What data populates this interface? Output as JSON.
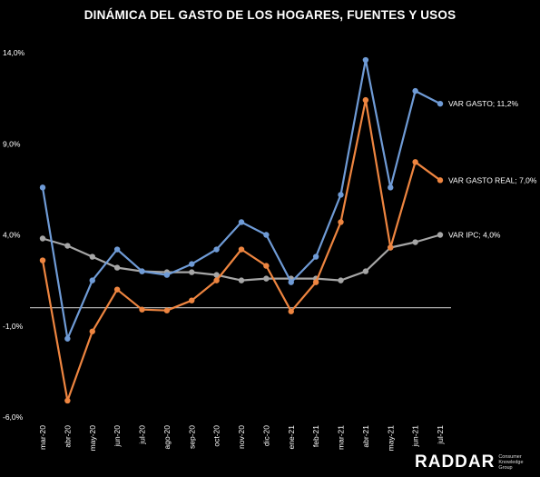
{
  "chart_data": {
    "type": "line",
    "title": "DINÁMICA DEL GASTO DE LOS HOGARES, FUENTES Y USOS",
    "categories": [
      "mar-20",
      "abr-20",
      "may-20",
      "jun-20",
      "jul-20",
      "ago-20",
      "sep-20",
      "oct-20",
      "nov-20",
      "dic-20",
      "ene-21",
      "feb-21",
      "mar-21",
      "abr-21",
      "may-21",
      "jun-21",
      "jul-21"
    ],
    "ylim": [
      -6.0,
      14.0
    ],
    "yticks": [
      14.0,
      9.0,
      4.0,
      -1.0,
      -6.0
    ],
    "ytick_labels": [
      "14,0%",
      "9,0%",
      "4,0%",
      "-1,0%",
      "-6,0%"
    ],
    "baseline": 0,
    "grid": false,
    "series": [
      {
        "name": "VAR GASTO",
        "end_label": "VAR GASTO; 11,2%",
        "color": "#6f9bd6",
        "values": [
          6.6,
          -1.7,
          1.5,
          3.2,
          2.0,
          1.8,
          2.4,
          3.2,
          4.7,
          4.0,
          1.4,
          2.8,
          6.2,
          13.6,
          6.6,
          11.9,
          11.2
        ]
      },
      {
        "name": "VAR GASTO REAL",
        "end_label": "VAR GASTO REAL; 7,0%",
        "color": "#ee8540",
        "values": [
          2.6,
          -5.1,
          -1.3,
          1.0,
          -0.1,
          -0.15,
          0.4,
          1.5,
          3.2,
          2.3,
          -0.2,
          1.4,
          4.7,
          11.4,
          3.3,
          8.0,
          7.0
        ]
      },
      {
        "name": "VAR IPC",
        "end_label": "VAR IPC; 4,0%",
        "color": "#a6a6a6",
        "values": [
          3.8,
          3.4,
          2.8,
          2.2,
          2.0,
          1.95,
          1.95,
          1.8,
          1.5,
          1.6,
          1.6,
          1.6,
          1.5,
          2.0,
          3.3,
          3.6,
          4.0
        ]
      }
    ]
  },
  "brand": {
    "word": "RADDAR",
    "sub": [
      "Consumer",
      "Knowledge",
      "Group"
    ]
  }
}
